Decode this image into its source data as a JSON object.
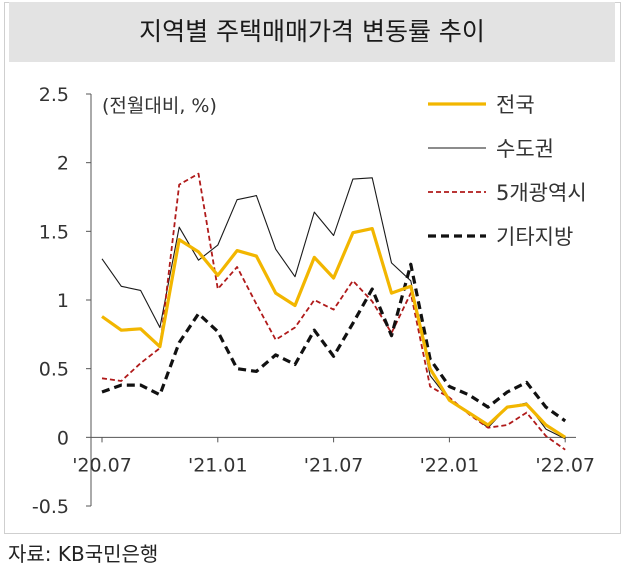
{
  "title": "지역별 주택매매가격 변동률 추이",
  "source": "자료: KB국민은행",
  "chart_data": {
    "type": "line",
    "unit_label": "(전월대비, %)",
    "x": [
      "'20.07",
      "'20.08",
      "'20.09",
      "'20.10",
      "'20.11",
      "'20.12",
      "'21.01",
      "'21.02",
      "'21.03",
      "'21.04",
      "'21.05",
      "'21.06",
      "'21.07",
      "'21.08",
      "'21.09",
      "'21.10",
      "'21.11",
      "'21.12",
      "'22.01",
      "'22.02",
      "'22.03",
      "'22.04",
      "'22.05",
      "'22.06",
      "'22.07"
    ],
    "xticks": [
      "'20.07",
      "'21.01",
      "'21.07",
      "'22.01",
      "'22.07"
    ],
    "yticks": [
      "2.5",
      "2",
      "1.5",
      "1",
      "0.5",
      "0",
      "-0.5"
    ],
    "ylim": [
      -0.5,
      2.5
    ],
    "legend_position": "top-right",
    "series": [
      {
        "name": "전국",
        "color": "#f2b600",
        "style": "solid-thick",
        "values": [
          0.88,
          0.78,
          0.79,
          0.66,
          1.44,
          1.35,
          1.18,
          1.36,
          1.32,
          1.05,
          0.96,
          1.31,
          1.16,
          1.49,
          1.52,
          1.05,
          1.1,
          0.5,
          0.27,
          0.18,
          0.09,
          0.22,
          0.24,
          0.09,
          0.0
        ]
      },
      {
        "name": "수도권",
        "color": "#1a1a1a",
        "style": "solid-thin",
        "values": [
          1.3,
          1.1,
          1.07,
          0.8,
          1.53,
          1.29,
          1.4,
          1.73,
          1.76,
          1.37,
          1.17,
          1.64,
          1.47,
          1.88,
          1.89,
          1.27,
          1.14,
          0.45,
          0.27,
          0.18,
          0.07,
          0.22,
          0.25,
          0.06,
          -0.01
        ]
      },
      {
        "name": "5개광역시",
        "color": "#b01a1a",
        "style": "dashed-thin",
        "values": [
          0.43,
          0.41,
          0.54,
          0.65,
          1.84,
          1.92,
          1.08,
          1.24,
          0.97,
          0.71,
          0.8,
          1.0,
          0.93,
          1.14,
          0.99,
          0.76,
          1.05,
          0.37,
          0.29,
          0.17,
          0.07,
          0.09,
          0.18,
          0.01,
          -0.09
        ]
      },
      {
        "name": "기타지방",
        "color": "#111111",
        "style": "dashed-thick",
        "values": [
          0.33,
          0.38,
          0.38,
          0.31,
          0.69,
          0.9,
          0.77,
          0.5,
          0.48,
          0.6,
          0.53,
          0.78,
          0.59,
          0.83,
          1.08,
          0.74,
          1.26,
          0.57,
          0.37,
          0.31,
          0.22,
          0.33,
          0.4,
          0.22,
          0.12
        ]
      }
    ]
  }
}
